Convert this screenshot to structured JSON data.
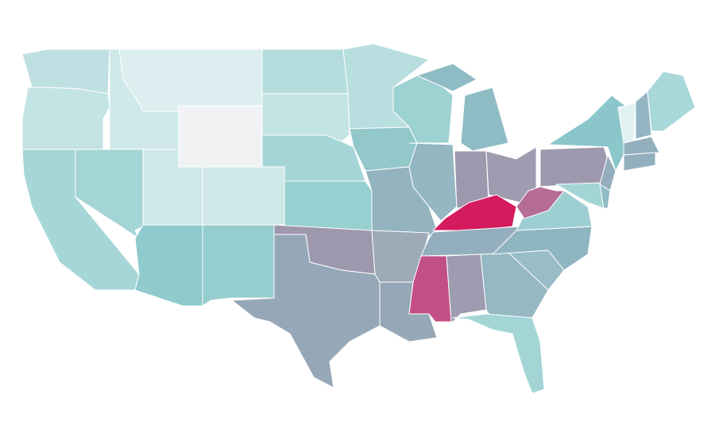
{
  "map": {
    "regions": [
      {
        "color": "#bfe0e2"
      },
      {
        "color": "#c4e3e4"
      },
      {
        "color": "#a6d6d8"
      },
      {
        "color": "#a3d4d6"
      },
      {
        "color": "#cfe8e9"
      },
      {
        "color": "#dceeef"
      },
      {
        "color": "#f1f2f4"
      },
      {
        "color": "#cfe8e9"
      },
      {
        "color": "#8fcacc"
      },
      {
        "color": "#cfe8e9"
      },
      {
        "color": "#96cdcf"
      },
      {
        "color": "#b4dcdd"
      },
      {
        "color": "#c4e3e4"
      },
      {
        "color": "#a5d5d6"
      },
      {
        "color": "#98cfd0"
      },
      {
        "color": "#9e98ae"
      },
      {
        "color": "#96a8b7"
      },
      {
        "color": "#b8dedf"
      },
      {
        "color": "#92c8ca"
      },
      {
        "color": "#93b3bf"
      },
      {
        "color": "#9eaab8"
      },
      {
        "color": "#96a8b7"
      },
      {
        "color": "#9dd2d3"
      },
      {
        "color": "#94b7c2"
      },
      {
        "color": "#8fbcc4"
      },
      {
        "color": "#9e98ae"
      },
      {
        "color": "#9e9cb0"
      },
      {
        "color": "#d41b5e"
      },
      {
        "color": "#93aebd"
      },
      {
        "color": "#c24f85"
      },
      {
        "color": "#9e9cb0"
      },
      {
        "color": "#95b8c2"
      },
      {
        "color": "#a3d5d7"
      },
      {
        "color": "#99bdc6"
      },
      {
        "color": "#8fb5c0"
      },
      {
        "color": "#9dcfd2"
      },
      {
        "color": "#b56c95"
      },
      {
        "color": "#9e98ae"
      },
      {
        "color": "#8ac6ca"
      },
      {
        "color": "#94aebd"
      },
      {
        "color": "#a3d4d6"
      },
      {
        "color": "#e2f1f1"
      },
      {
        "color": "#93b6c2"
      },
      {
        "color": "#a8d8d9"
      },
      {
        "color": "#93afbd"
      },
      {
        "color": "#93afbd"
      },
      {
        "color": "#8fbcc4"
      }
    ]
  }
}
